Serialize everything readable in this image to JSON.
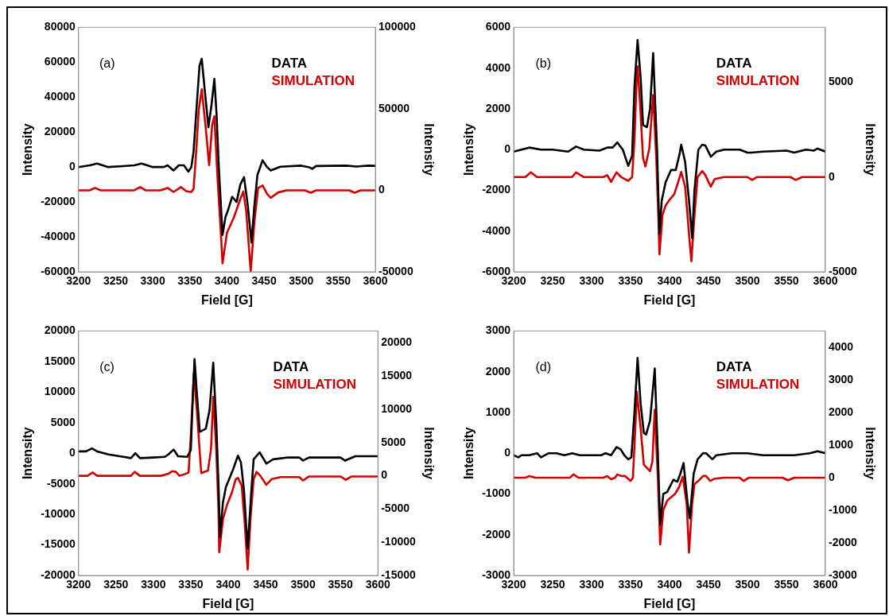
{
  "chart_data": [
    {
      "type": "line",
      "xlabel": "Field [G]",
      "ylabel": "Intensity",
      "y2label": "Intensity",
      "xlim": [
        3200,
        3600
      ],
      "xticks": [
        3200,
        3250,
        3300,
        3350,
        3400,
        3450,
        3500,
        3550,
        3600
      ],
      "ylim": [
        -60000,
        80000
      ],
      "yticks": [
        -60000,
        -40000,
        -20000,
        0,
        20000,
        40000,
        60000,
        80000
      ],
      "y2lim": [
        -50000,
        100000
      ],
      "y2ticks": [
        -50000,
        0,
        50000,
        100000
      ],
      "legend": "top right",
      "marker": "none",
      "line_style": "solid",
      "annotations": [
        "(a)"
      ],
      "series": [
        {
          "name": "DATA",
          "color": "#000000",
          "axis": "y",
          "x": [
            3200,
            3215,
            3225,
            3240,
            3260,
            3275,
            3285,
            3300,
            3315,
            3320,
            3328,
            3335,
            3342,
            3348,
            3352,
            3355,
            3360,
            3363,
            3366,
            3371,
            3375,
            3379,
            3383,
            3386,
            3389,
            3394,
            3398,
            3401,
            3407,
            3413,
            3418,
            3423,
            3428,
            3433,
            3437,
            3441,
            3448,
            3454,
            3459,
            3472,
            3500,
            3510,
            3515,
            3520,
            3560,
            3575,
            3590,
            3600
          ],
          "values": [
            0,
            1000,
            2000,
            0,
            500,
            1000,
            2000,
            0,
            0,
            1000,
            -2000,
            1000,
            1000,
            -2600,
            0,
            9000,
            40000,
            58000,
            62000,
            40000,
            22800,
            35000,
            50500,
            30000,
            0,
            -38900,
            -28600,
            -25200,
            -17000,
            -20000,
            -10000,
            -5800,
            -21800,
            -43200,
            -21800,
            -4600,
            3900,
            0,
            -2000,
            200,
            800,
            0,
            -1000,
            600,
            800,
            300,
            800,
            700
          ]
        },
        {
          "name": "SIMULATION",
          "color": "#d40000",
          "axis": "y2",
          "x": [
            3200,
            3215,
            3222,
            3230,
            3275,
            3283,
            3290,
            3310,
            3320,
            3328,
            3338,
            3345,
            3352,
            3355,
            3358,
            3362,
            3366,
            3371,
            3376,
            3380,
            3383,
            3387,
            3392,
            3394,
            3400,
            3409,
            3416,
            3422,
            3426,
            3432,
            3437,
            3442,
            3448,
            3454,
            3459,
            3469,
            3480,
            3505,
            3513,
            3520,
            3565,
            3572,
            3580,
            3600
          ],
          "values": [
            0,
            0,
            1500,
            0,
            0,
            2000,
            0,
            0,
            1500,
            -1000,
            2000,
            -500,
            -1000,
            1000,
            20000,
            49600,
            62000,
            40000,
            15400,
            40000,
            45400,
            10000,
            -28000,
            -44800,
            -26000,
            -17000,
            -7800,
            -700,
            -13000,
            -50000,
            -19000,
            1500,
            3000,
            -2200,
            -4600,
            -1300,
            0,
            0,
            -1500,
            0,
            0,
            -1500,
            0,
            0
          ]
        }
      ]
    },
    {
      "type": "line",
      "xlabel": "Field [G]",
      "ylabel": "Intensity",
      "y2label": "Intensity",
      "xlim": [
        3200,
        3600
      ],
      "xticks": [
        3200,
        3250,
        3300,
        3350,
        3400,
        3450,
        3500,
        3550,
        3600
      ],
      "ylim": [
        -6000,
        6000
      ],
      "yticks": [
        -6000,
        -4000,
        -2000,
        0,
        2000,
        4000,
        6000
      ],
      "y2lim": [
        -5000,
        7900
      ],
      "y2ticks": [
        -5000,
        0,
        5000
      ],
      "legend": "top right",
      "marker": "none",
      "line_style": "solid",
      "annotations": [
        "(b)"
      ],
      "series": [
        {
          "name": "DATA",
          "color": "#000000",
          "axis": "y",
          "x": [
            3200,
            3210,
            3220,
            3235,
            3250,
            3270,
            3280,
            3290,
            3310,
            3320,
            3327,
            3333,
            3340,
            3347,
            3352,
            3355,
            3359,
            3363,
            3366,
            3371,
            3375,
            3379,
            3384,
            3387,
            3390,
            3395,
            3402,
            3408,
            3413,
            3415,
            3420,
            3425,
            3429,
            3432,
            3437,
            3442,
            3446,
            3453,
            3460,
            3470,
            3490,
            3500,
            3505,
            3520,
            3550,
            3560,
            3575,
            3585,
            3590,
            3600
          ],
          "values": [
            -100,
            0,
            100,
            0,
            0,
            -100,
            150,
            0,
            -50,
            100,
            100,
            350,
            0,
            -800,
            -300,
            3100,
            5380,
            3500,
            1200,
            1100,
            2000,
            4740,
            0,
            -4120,
            -2500,
            -1600,
            -1000,
            -1000,
            -200,
            240,
            -600,
            -2500,
            -4340,
            -2000,
            0,
            240,
            200,
            -350,
            -100,
            0,
            0,
            -150,
            -150,
            -100,
            -50,
            -150,
            0,
            -50,
            50,
            -100
          ]
        },
        {
          "name": "SIMULATION",
          "color": "#d40000",
          "axis": "y2",
          "x": [
            3200,
            3215,
            3222,
            3230,
            3275,
            3280,
            3290,
            3315,
            3320,
            3325,
            3332,
            3338,
            3347,
            3352,
            3355,
            3358,
            3359,
            3362,
            3366,
            3369,
            3374,
            3379,
            3383,
            3386,
            3387,
            3391,
            3395,
            3400,
            3406,
            3410,
            3415,
            3420,
            3425,
            3428,
            3432,
            3436,
            3442,
            3446,
            3453,
            3458,
            3470,
            3500,
            3506,
            3512,
            3555,
            3562,
            3570,
            3600
          ],
          "values": [
            0,
            0,
            250,
            0,
            0,
            250,
            0,
            0,
            100,
            -250,
            250,
            0,
            -200,
            0,
            2000,
            5400,
            5840,
            4000,
            1000,
            560,
            1500,
            4330,
            1000,
            -2500,
            -4080,
            -2000,
            -1500,
            -1200,
            -900,
            -400,
            270,
            -500,
            -3000,
            -4440,
            -2000,
            0,
            320,
            100,
            -510,
            -100,
            0,
            0,
            -150,
            0,
            0,
            -150,
            0,
            0
          ]
        }
      ]
    },
    {
      "type": "line",
      "xlabel": "Field [G]",
      "ylabel": "Intensity",
      "y2label": "Intensity",
      "xlim": [
        3200,
        3600
      ],
      "xticks": [
        3200,
        3250,
        3300,
        3350,
        3400,
        3450,
        3500,
        3550,
        3600
      ],
      "ylim": [
        -20000,
        20000
      ],
      "yticks": [
        -20000,
        -15000,
        -10000,
        -5000,
        0,
        5000,
        10000,
        15000,
        20000
      ],
      "y2lim": [
        -15000,
        21800
      ],
      "y2ticks": [
        -15000,
        -10000,
        -5000,
        0,
        5000,
        10000,
        15000,
        20000
      ],
      "legend": "top right",
      "marker": "none",
      "line_style": "solid",
      "annotations": [
        "(c)"
      ],
      "series": [
        {
          "name": "DATA",
          "color": "#000000",
          "axis": "y",
          "x": [
            3200,
            3210,
            3218,
            3225,
            3240,
            3260,
            3270,
            3276,
            3282,
            3300,
            3315,
            3320,
            3327,
            3333,
            3345,
            3350,
            3353,
            3355,
            3358,
            3362,
            3370,
            3375,
            3380,
            3384,
            3387,
            3389,
            3393,
            3397,
            3402,
            3407,
            3413,
            3417,
            3421,
            3426,
            3431,
            3434,
            3442,
            3451,
            3460,
            3480,
            3495,
            3500,
            3508,
            3550,
            3556,
            3570,
            3600
          ],
          "values": [
            300,
            300,
            800,
            300,
            -200,
            -600,
            -800,
            0,
            -800,
            -700,
            -600,
            -200,
            600,
            -500,
            -600,
            500,
            10000,
            15400,
            10000,
            3500,
            4000,
            7000,
            14800,
            5000,
            -5000,
            -13700,
            -8000,
            -5500,
            -4000,
            -2500,
            -400,
            -1500,
            -6000,
            -15600,
            -6000,
            -1000,
            150,
            -1700,
            -1000,
            -700,
            -700,
            -1200,
            -700,
            -700,
            -1200,
            -500,
            -500
          ]
        },
        {
          "name": "SIMULATION",
          "color": "#d40000",
          "axis": "y2",
          "x": [
            3200,
            3212,
            3219,
            3225,
            3270,
            3275,
            3282,
            3310,
            3320,
            3325,
            3330,
            3335,
            3343,
            3347,
            3350,
            3354,
            3358,
            3362,
            3364,
            3373,
            3377,
            3380,
            3384,
            3387,
            3388,
            3393,
            3398,
            3405,
            3410,
            3413,
            3418,
            3422,
            3426,
            3430,
            3434,
            3438,
            3443,
            3451,
            3458,
            3470,
            3495,
            3500,
            3508,
            3550,
            3557,
            3565,
            3600
          ],
          "values": [
            0,
            0,
            500,
            0,
            0,
            600,
            0,
            0,
            300,
            700,
            600,
            0,
            300,
            500,
            6000,
            15400,
            10000,
            3500,
            400,
            800,
            4000,
            11900,
            4000,
            -5000,
            -11500,
            -6500,
            -4500,
            -2500,
            -500,
            -300,
            -1500,
            -7000,
            -14100,
            -6000,
            -500,
            600,
            0,
            -1350,
            -500,
            -200,
            -200,
            -700,
            -100,
            -100,
            -600,
            -100,
            -100
          ]
        }
      ]
    },
    {
      "type": "line",
      "xlabel": "Field [G]",
      "ylabel": "Intensity",
      "y2label": "Intensity",
      "xlim": [
        3200,
        3600
      ],
      "xticks": [
        3200,
        3250,
        3300,
        3350,
        3400,
        3450,
        3500,
        3550,
        3600
      ],
      "ylim": [
        -3000,
        3000
      ],
      "yticks": [
        -3000,
        -2000,
        -1000,
        0,
        1000,
        2000,
        3000
      ],
      "y2lim": [
        -3000,
        4500
      ],
      "y2ticks": [
        -3000,
        -2000,
        -1000,
        0,
        1000,
        2000,
        3000,
        4000
      ],
      "legend": "top right",
      "marker": "none",
      "line_style": "solid",
      "annotations": [
        "(d)"
      ],
      "series": [
        {
          "name": "DATA",
          "color": "#000000",
          "axis": "y",
          "x": [
            3200,
            3206,
            3210,
            3220,
            3230,
            3235,
            3245,
            3255,
            3265,
            3275,
            3285,
            3295,
            3305,
            3312,
            3318,
            3325,
            3332,
            3337,
            3342,
            3347,
            3351,
            3355,
            3359,
            3363,
            3367,
            3370,
            3375,
            3381,
            3385,
            3388,
            3392,
            3397,
            3401,
            3405,
            3410,
            3414,
            3418,
            3423,
            3426,
            3431,
            3436,
            3443,
            3447,
            3455,
            3460,
            3480,
            3500,
            3520,
            3540,
            3560,
            3580,
            3590,
            3600
          ],
          "values": [
            -50,
            -100,
            -50,
            -50,
            0,
            -100,
            0,
            0,
            -50,
            0,
            -50,
            -50,
            -50,
            -50,
            0,
            -50,
            150,
            100,
            -50,
            -150,
            -100,
            1000,
            2340,
            1200,
            500,
            460,
            800,
            2080,
            0,
            -1760,
            -1000,
            -950,
            -800,
            -650,
            -700,
            -500,
            -240,
            -1200,
            -1600,
            -500,
            -150,
            0,
            0,
            -150,
            -50,
            0,
            0,
            -50,
            -50,
            -50,
            0,
            50,
            0
          ]
        },
        {
          "name": "SIMULATION",
          "color": "#d40000",
          "axis": "y2",
          "x": [
            3200,
            3215,
            3220,
            3228,
            3272,
            3277,
            3283,
            3315,
            3320,
            3325,
            3330,
            3333,
            3338,
            3343,
            3350,
            3353,
            3356,
            3358,
            3363,
            3367,
            3371,
            3375,
            3378,
            3381,
            3385,
            3388,
            3392,
            3397,
            3402,
            3407,
            3412,
            3417,
            3422,
            3425,
            3429,
            3432,
            3437,
            3443,
            3447,
            3452,
            3458,
            3470,
            3490,
            3495,
            3502,
            3545,
            3552,
            3560,
            3600
          ],
          "values": [
            0,
            0,
            50,
            0,
            0,
            100,
            0,
            0,
            50,
            -50,
            0,
            100,
            50,
            50,
            -100,
            0,
            1500,
            2640,
            1500,
            400,
            300,
            200,
            500,
            2080,
            0,
            -2050,
            -1000,
            -700,
            -600,
            -500,
            -300,
            30,
            -800,
            -2300,
            -800,
            -200,
            -100,
            50,
            50,
            -100,
            -30,
            0,
            0,
            -100,
            0,
            0,
            -80,
            0,
            0
          ]
        }
      ]
    }
  ]
}
